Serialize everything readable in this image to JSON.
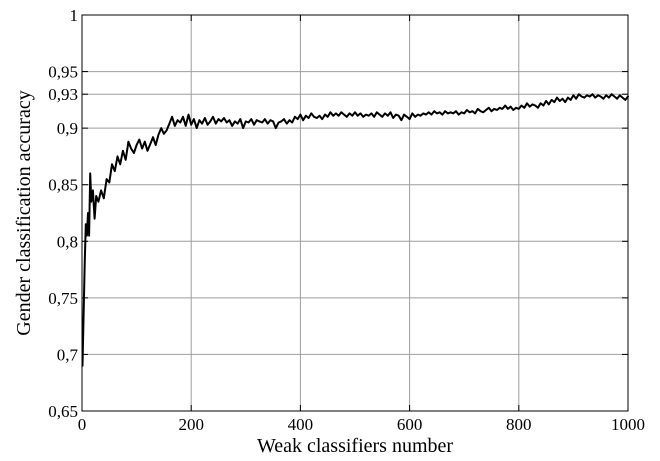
{
  "chart_data": {
    "type": "line",
    "title": "",
    "xlabel": "Weak classifiers number",
    "ylabel": "Gender classification accuracy",
    "xlim": [
      0,
      1000
    ],
    "ylim": [
      0.65,
      1
    ],
    "grid": true,
    "line_color": "#000000",
    "x_ticks": [
      {
        "value": 0,
        "label": "0"
      },
      {
        "value": 200,
        "label": "200"
      },
      {
        "value": 400,
        "label": "400"
      },
      {
        "value": 600,
        "label": "600"
      },
      {
        "value": 800,
        "label": "800"
      },
      {
        "value": 1000,
        "label": "1000"
      }
    ],
    "y_ticks": [
      {
        "value": 0.65,
        "label": "0,65"
      },
      {
        "value": 0.7,
        "label": "0,7"
      },
      {
        "value": 0.75,
        "label": "0,75"
      },
      {
        "value": 0.8,
        "label": "0,8"
      },
      {
        "value": 0.85,
        "label": "0,85"
      },
      {
        "value": 0.9,
        "label": "0,9"
      },
      {
        "value": 0.93,
        "label": "0,93"
      },
      {
        "value": 0.95,
        "label": "0,95"
      },
      {
        "value": 1,
        "label": "1"
      }
    ],
    "series": [
      {
        "x": [
          1,
          3,
          5,
          7,
          9,
          11,
          13,
          15,
          17,
          20,
          23,
          26,
          30,
          35,
          40,
          45,
          50,
          55,
          60,
          65,
          70,
          75,
          80,
          85,
          90,
          95,
          100,
          105,
          110,
          115,
          120,
          125,
          130,
          135,
          140,
          145,
          150,
          155,
          160,
          165,
          170,
          175,
          180,
          185,
          190,
          195,
          200,
          205,
          210,
          215,
          220,
          225,
          230,
          235,
          240,
          245,
          250,
          255,
          260,
          265,
          270,
          275,
          280,
          285,
          290,
          295,
          300,
          305,
          310,
          315,
          320,
          325,
          330,
          335,
          340,
          345,
          350,
          355,
          360,
          365,
          370,
          375,
          380,
          385,
          390,
          395,
          400,
          405,
          410,
          415,
          420,
          425,
          430,
          435,
          440,
          445,
          450,
          455,
          460,
          465,
          470,
          475,
          480,
          485,
          490,
          495,
          500,
          505,
          510,
          515,
          520,
          525,
          530,
          535,
          540,
          545,
          550,
          555,
          560,
          565,
          570,
          575,
          580,
          585,
          590,
          595,
          600,
          605,
          610,
          615,
          620,
          625,
          630,
          635,
          640,
          645,
          650,
          655,
          660,
          665,
          670,
          675,
          680,
          685,
          690,
          695,
          700,
          705,
          710,
          715,
          720,
          725,
          730,
          735,
          740,
          745,
          750,
          755,
          760,
          765,
          770,
          775,
          780,
          785,
          790,
          795,
          800,
          805,
          810,
          815,
          820,
          825,
          830,
          835,
          840,
          845,
          850,
          855,
          860,
          865,
          870,
          875,
          880,
          885,
          890,
          895,
          900,
          905,
          910,
          915,
          920,
          925,
          930,
          935,
          940,
          945,
          950,
          955,
          960,
          965,
          970,
          975,
          980,
          985,
          990,
          995,
          1000
        ],
        "y": [
          0.69,
          0.735,
          0.78,
          0.815,
          0.805,
          0.825,
          0.805,
          0.86,
          0.835,
          0.845,
          0.82,
          0.84,
          0.835,
          0.845,
          0.838,
          0.855,
          0.852,
          0.868,
          0.862,
          0.875,
          0.868,
          0.88,
          0.872,
          0.888,
          0.882,
          0.878,
          0.885,
          0.89,
          0.882,
          0.888,
          0.88,
          0.886,
          0.892,
          0.885,
          0.894,
          0.9,
          0.895,
          0.898,
          0.904,
          0.91,
          0.902,
          0.907,
          0.905,
          0.91,
          0.902,
          0.912,
          0.903,
          0.908,
          0.9,
          0.907,
          0.904,
          0.909,
          0.903,
          0.906,
          0.91,
          0.904,
          0.908,
          0.906,
          0.909,
          0.905,
          0.907,
          0.902,
          0.906,
          0.904,
          0.908,
          0.9,
          0.906,
          0.905,
          0.908,
          0.903,
          0.907,
          0.906,
          0.905,
          0.908,
          0.904,
          0.907,
          0.906,
          0.9,
          0.905,
          0.906,
          0.908,
          0.904,
          0.907,
          0.905,
          0.91,
          0.908,
          0.912,
          0.907,
          0.911,
          0.909,
          0.913,
          0.91,
          0.909,
          0.911,
          0.908,
          0.912,
          0.91,
          0.914,
          0.911,
          0.913,
          0.911,
          0.914,
          0.912,
          0.91,
          0.913,
          0.911,
          0.914,
          0.911,
          0.913,
          0.91,
          0.912,
          0.911,
          0.913,
          0.91,
          0.914,
          0.912,
          0.91,
          0.913,
          0.911,
          0.914,
          0.909,
          0.912,
          0.911,
          0.907,
          0.912,
          0.91,
          0.908,
          0.913,
          0.91,
          0.912,
          0.911,
          0.913,
          0.912,
          0.914,
          0.912,
          0.915,
          0.913,
          0.914,
          0.912,
          0.915,
          0.913,
          0.914,
          0.913,
          0.915,
          0.912,
          0.914,
          0.913,
          0.916,
          0.914,
          0.915,
          0.913,
          0.917,
          0.915,
          0.914,
          0.916,
          0.918,
          0.915,
          0.917,
          0.916,
          0.918,
          0.917,
          0.92,
          0.917,
          0.919,
          0.916,
          0.918,
          0.917,
          0.92,
          0.918,
          0.922,
          0.919,
          0.921,
          0.92,
          0.918,
          0.922,
          0.92,
          0.924,
          0.921,
          0.925,
          0.923,
          0.927,
          0.924,
          0.926,
          0.923,
          0.927,
          0.925,
          0.929,
          0.926,
          0.93,
          0.928,
          0.927,
          0.929,
          0.928,
          0.93,
          0.927,
          0.929,
          0.928,
          0.926,
          0.929,
          0.927,
          0.93,
          0.928,
          0.926,
          0.929,
          0.927,
          0.925,
          0.928
        ]
      }
    ]
  }
}
